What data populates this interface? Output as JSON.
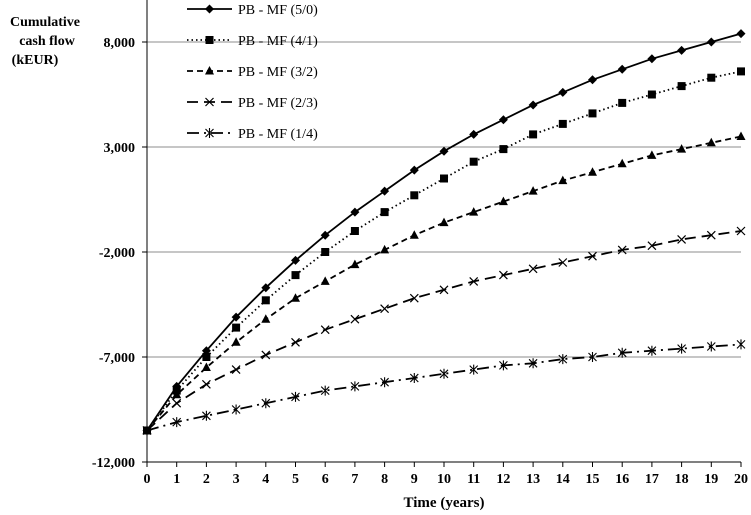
{
  "chart_data": {
    "type": "line",
    "ylabel_lines": [
      "Cumulative",
      "cash flow",
      "(kEUR)"
    ],
    "xlabel": "Time (years)",
    "x": [
      0,
      1,
      2,
      3,
      4,
      5,
      6,
      7,
      8,
      9,
      10,
      11,
      12,
      13,
      14,
      15,
      16,
      17,
      18,
      19,
      20
    ],
    "xlim": [
      0,
      20
    ],
    "ylim": [
      -12000,
      10000
    ],
    "yticks": [
      -12000,
      -7000,
      -2000,
      3000,
      8000
    ],
    "ytick_labels": [
      "-12,000",
      "-7,000",
      "-2,000",
      "3,000",
      "8,000"
    ],
    "xtick_labels": [
      "0",
      "1",
      "2",
      "3",
      "4",
      "5",
      "6",
      "7",
      "8",
      "9",
      "10",
      "11",
      "12",
      "13",
      "14",
      "15",
      "16",
      "17",
      "18",
      "19",
      "20"
    ],
    "grid": "horizontal",
    "legend_position": "top-left",
    "series": [
      {
        "name": "PB - MF (5/0)",
        "dash": "solid",
        "marker": "diamond",
        "values": [
          -10500,
          -8400,
          -6700,
          -5100,
          -3700,
          -2400,
          -1200,
          -100,
          900,
          1900,
          2800,
          3600,
          4300,
          5000,
          5600,
          6200,
          6700,
          7200,
          7600,
          8000,
          8400
        ]
      },
      {
        "name": "PB - MF (4/1)",
        "dash": "dotted",
        "marker": "square",
        "values": [
          -10500,
          -8600,
          -7000,
          -5600,
          -4300,
          -3100,
          -2000,
          -1000,
          -100,
          700,
          1500,
          2300,
          2900,
          3600,
          4100,
          4600,
          5100,
          5500,
          5900,
          6300,
          6600
        ]
      },
      {
        "name": "PB - MF (3/2)",
        "dash": "shortdash",
        "marker": "triangle",
        "values": [
          -10500,
          -8800,
          -7500,
          -6300,
          -5200,
          -4200,
          -3400,
          -2600,
          -1900,
          -1200,
          -600,
          -100,
          400,
          900,
          1400,
          1800,
          2200,
          2600,
          2900,
          3200,
          3500
        ]
      },
      {
        "name": "PB - MF (2/3)",
        "dash": "longdash",
        "marker": "x",
        "values": [
          -10500,
          -9200,
          -8300,
          -7600,
          -6900,
          -6300,
          -5700,
          -5200,
          -4700,
          -4200,
          -3800,
          -3400,
          -3100,
          -2800,
          -2500,
          -2200,
          -1900,
          -1700,
          -1400,
          -1200,
          -1000
        ]
      },
      {
        "name": "PB - MF (1/4)",
        "dash": "dashdot",
        "marker": "asterisk",
        "values": [
          -10500,
          -10100,
          -9800,
          -9500,
          -9200,
          -8900,
          -8600,
          -8400,
          -8200,
          -8000,
          -7800,
          -7600,
          -7400,
          -7300,
          -7100,
          -7000,
          -6800,
          -6700,
          -6600,
          -6500,
          -6400
        ]
      }
    ]
  }
}
